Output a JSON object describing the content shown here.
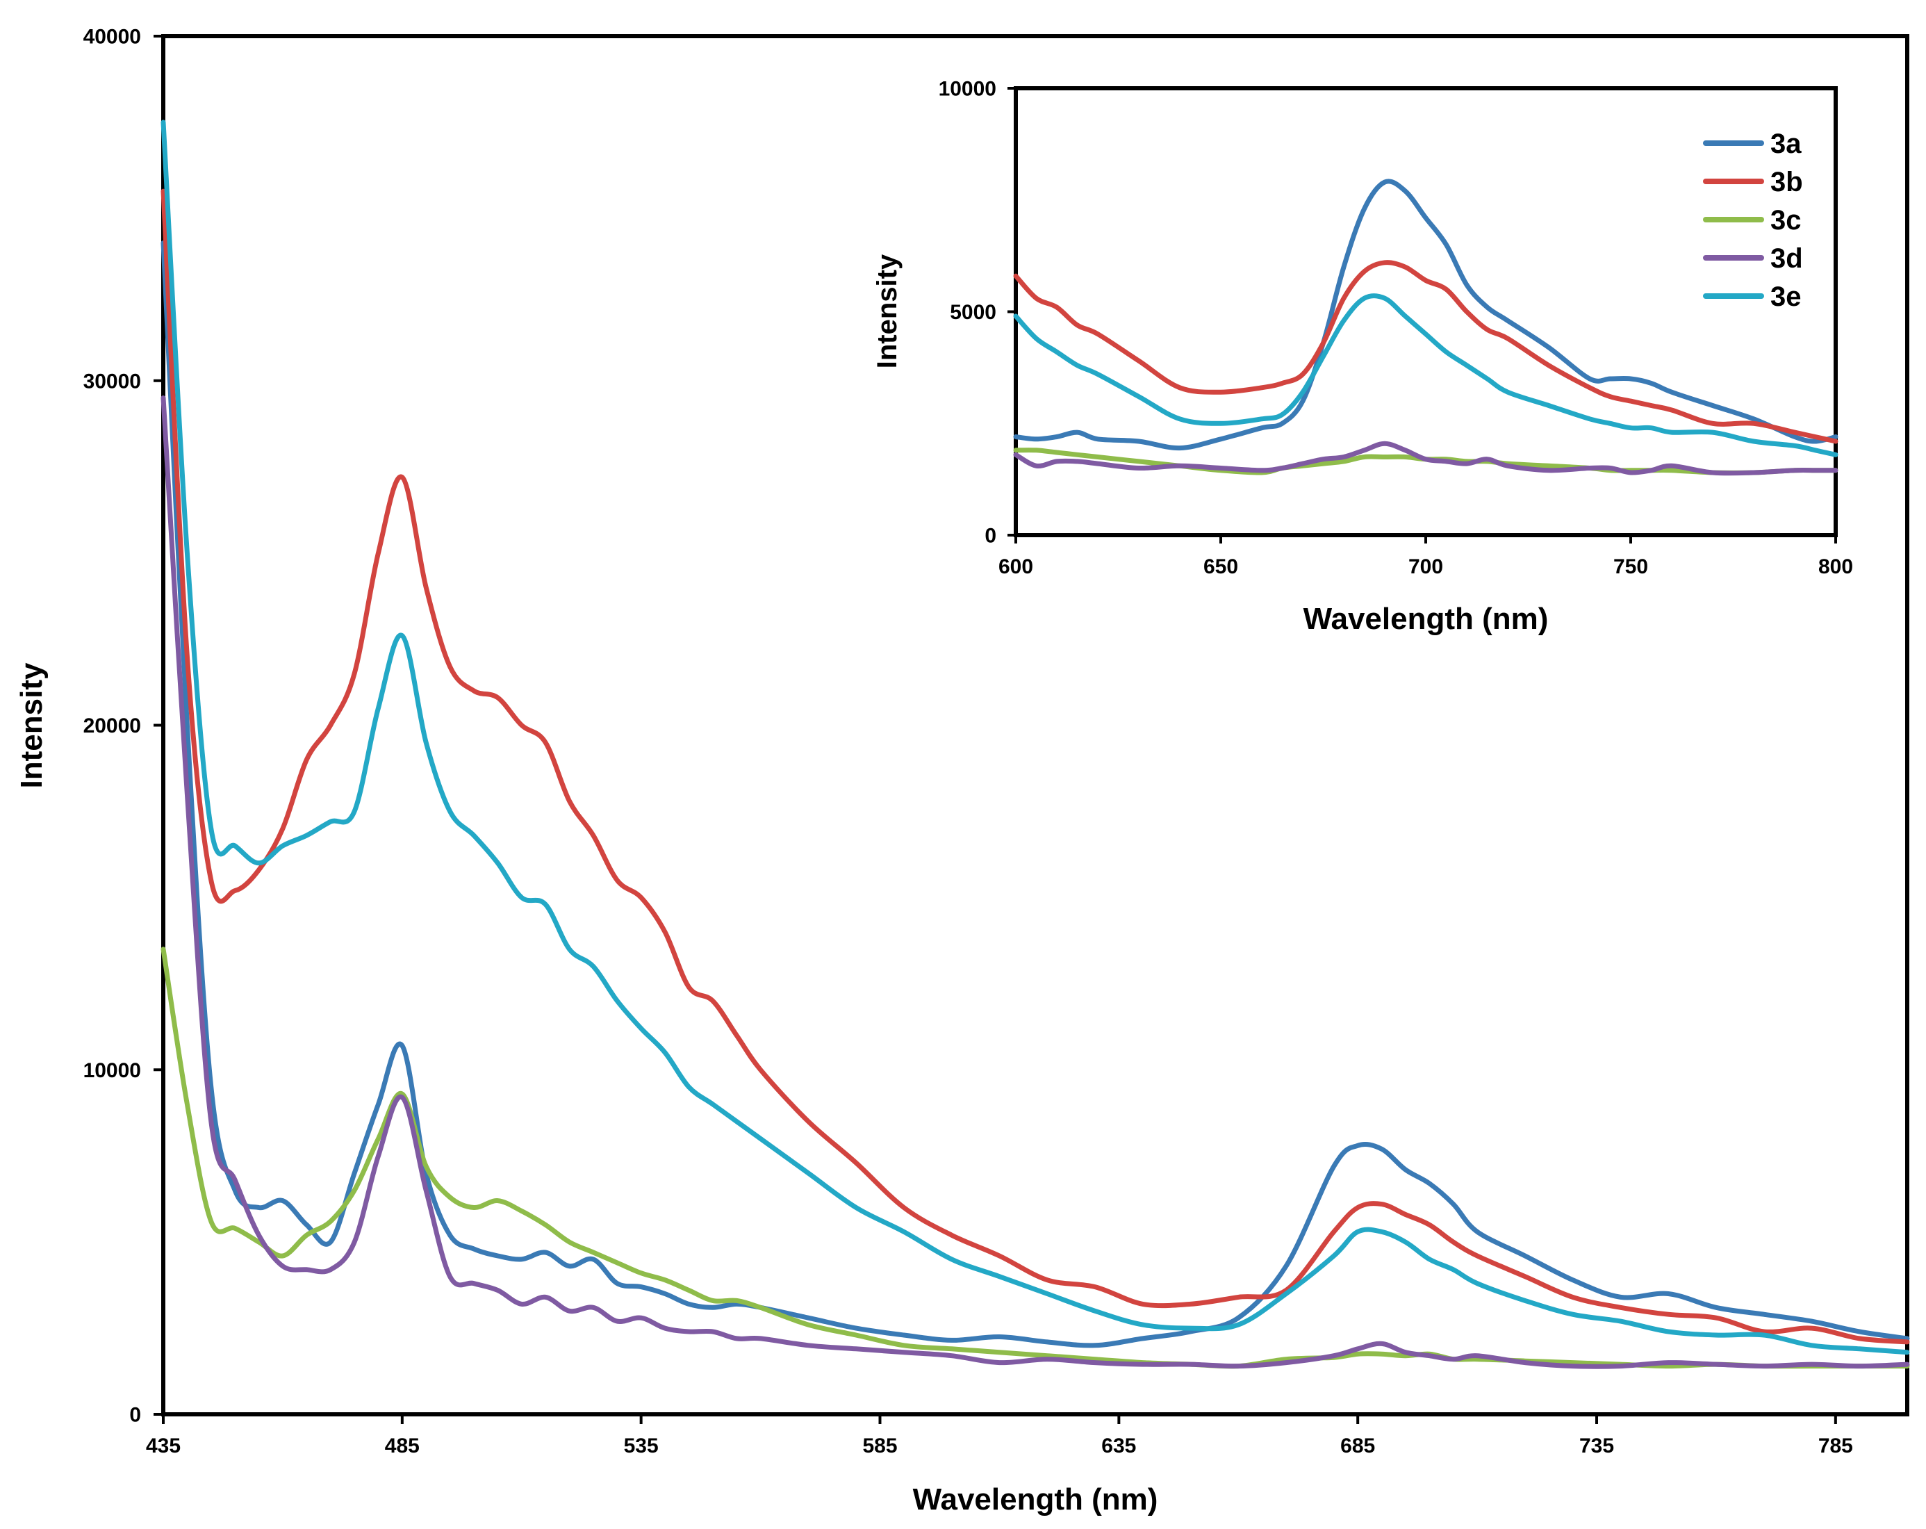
{
  "chart_data": [
    {
      "id": "main",
      "type": "line",
      "title": "",
      "xlabel": "Wavelength (nm)",
      "ylabel": "Intensity",
      "xlim": [
        435,
        800
      ],
      "ylim": [
        0,
        40000
      ],
      "xticks": [
        435,
        485,
        535,
        585,
        635,
        685,
        735,
        785
      ],
      "yticks": [
        0,
        10000,
        20000,
        30000,
        40000
      ],
      "grid": false,
      "series": [
        {
          "name": "3a",
          "color": "#3a7ab5",
          "x": [
            435,
            440,
            445,
            450,
            455,
            460,
            465,
            470,
            475,
            480,
            485,
            490,
            495,
            500,
            505,
            510,
            515,
            520,
            525,
            530,
            535,
            540,
            545,
            550,
            555,
            560,
            570,
            580,
            590,
            600,
            610,
            620,
            630,
            640,
            650,
            660,
            670,
            680,
            685,
            690,
            695,
            700,
            705,
            710,
            720,
            730,
            740,
            750,
            760,
            770,
            780,
            790,
            800
          ],
          "y": [
            34000,
            20000,
            9500,
            6500,
            6000,
            6200,
            5500,
            5000,
            7000,
            9000,
            10700,
            7000,
            5200,
            4800,
            4600,
            4500,
            4700,
            4300,
            4500,
            3800,
            3700,
            3500,
            3200,
            3100,
            3200,
            3100,
            2800,
            2500,
            2300,
            2150,
            2250,
            2100,
            2000,
            2200,
            2400,
            2800,
            4300,
            7200,
            7800,
            7700,
            7100,
            6700,
            6100,
            5300,
            4600,
            3900,
            3400,
            3500,
            3100,
            2900,
            2700,
            2400,
            2200
          ]
        },
        {
          "name": "3b",
          "color": "#d2443f",
          "x": [
            435,
            440,
            445,
            450,
            455,
            460,
            465,
            470,
            475,
            480,
            485,
            490,
            495,
            500,
            505,
            510,
            515,
            520,
            525,
            530,
            535,
            540,
            545,
            550,
            555,
            560,
            570,
            580,
            590,
            600,
            610,
            620,
            630,
            640,
            650,
            660,
            670,
            680,
            685,
            690,
            695,
            700,
            705,
            710,
            720,
            730,
            740,
            750,
            760,
            770,
            780,
            790,
            800
          ],
          "y": [
            35500,
            22000,
            15500,
            15200,
            15800,
            17000,
            19000,
            20000,
            21500,
            25000,
            27200,
            24000,
            21700,
            21000,
            20800,
            20000,
            19500,
            17800,
            16800,
            15500,
            15000,
            14000,
            12400,
            12000,
            11000,
            10000,
            8500,
            7300,
            6000,
            5200,
            4600,
            3900,
            3700,
            3200,
            3200,
            3400,
            3600,
            5300,
            6000,
            6100,
            5800,
            5500,
            5000,
            4600,
            4000,
            3400,
            3100,
            2900,
            2800,
            2400,
            2500,
            2200,
            2100
          ]
        },
        {
          "name": "3c",
          "color": "#8fbc4a",
          "x": [
            435,
            440,
            445,
            450,
            455,
            460,
            465,
            470,
            475,
            480,
            485,
            490,
            495,
            500,
            505,
            510,
            515,
            520,
            525,
            530,
            535,
            540,
            545,
            550,
            555,
            560,
            570,
            580,
            590,
            600,
            610,
            620,
            630,
            640,
            650,
            660,
            670,
            680,
            685,
            690,
            695,
            700,
            705,
            710,
            720,
            730,
            740,
            750,
            760,
            770,
            780,
            790,
            800
          ],
          "y": [
            13500,
            9000,
            5600,
            5400,
            5000,
            4600,
            5200,
            5600,
            6500,
            8000,
            9300,
            7200,
            6300,
            6000,
            6200,
            5900,
            5500,
            5000,
            4700,
            4400,
            4100,
            3900,
            3600,
            3300,
            3300,
            3100,
            2600,
            2300,
            2000,
            1900,
            1800,
            1700,
            1600,
            1500,
            1450,
            1400,
            1600,
            1650,
            1750,
            1750,
            1700,
            1750,
            1600,
            1600,
            1550,
            1500,
            1450,
            1400,
            1450,
            1400,
            1400,
            1400,
            1400
          ]
        },
        {
          "name": "3d",
          "color": "#7f5aa2",
          "x": [
            435,
            440,
            445,
            450,
            455,
            460,
            465,
            470,
            475,
            480,
            485,
            490,
            495,
            500,
            505,
            510,
            515,
            520,
            525,
            530,
            535,
            540,
            545,
            550,
            555,
            560,
            570,
            580,
            590,
            600,
            610,
            620,
            630,
            640,
            650,
            660,
            670,
            680,
            685,
            690,
            695,
            700,
            705,
            710,
            720,
            730,
            740,
            750,
            760,
            770,
            780,
            790,
            800
          ],
          "y": [
            29500,
            18000,
            8500,
            6800,
            5200,
            4300,
            4200,
            4200,
            5000,
            7500,
            9200,
            6500,
            4000,
            3800,
            3600,
            3200,
            3400,
            3000,
            3100,
            2700,
            2800,
            2500,
            2400,
            2400,
            2200,
            2200,
            2000,
            1900,
            1800,
            1700,
            1500,
            1600,
            1500,
            1450,
            1450,
            1400,
            1500,
            1700,
            1900,
            2050,
            1800,
            1700,
            1600,
            1700,
            1500,
            1400,
            1400,
            1500,
            1450,
            1400,
            1450,
            1400,
            1450
          ]
        },
        {
          "name": "3e",
          "color": "#23a8c6",
          "x": [
            435,
            440,
            445,
            450,
            455,
            460,
            465,
            470,
            475,
            480,
            485,
            490,
            495,
            500,
            505,
            510,
            515,
            520,
            525,
            530,
            535,
            540,
            545,
            550,
            555,
            560,
            570,
            580,
            590,
            600,
            610,
            620,
            630,
            640,
            650,
            660,
            670,
            680,
            685,
            690,
            695,
            700,
            705,
            710,
            720,
            730,
            740,
            750,
            760,
            770,
            780,
            790,
            800
          ],
          "y": [
            37500,
            25000,
            17000,
            16500,
            16000,
            16500,
            16800,
            17200,
            17500,
            20500,
            22600,
            19500,
            17500,
            16800,
            16000,
            15000,
            14800,
            13500,
            13000,
            12000,
            11200,
            10500,
            9500,
            9000,
            8500,
            8000,
            7000,
            6000,
            5300,
            4500,
            4000,
            3500,
            3000,
            2600,
            2500,
            2600,
            3500,
            4600,
            5300,
            5300,
            5000,
            4500,
            4200,
            3800,
            3300,
            2900,
            2700,
            2400,
            2300,
            2300,
            2000,
            1900,
            1800
          ]
        }
      ]
    },
    {
      "id": "inset",
      "type": "line",
      "title": "",
      "xlabel": "Wavelength (nm)",
      "ylabel": "Intensity",
      "xlim": [
        600,
        800
      ],
      "ylim": [
        0,
        10000
      ],
      "xticks": [
        600,
        650,
        700,
        750,
        800
      ],
      "yticks": [
        0,
        5000,
        10000
      ],
      "grid": false,
      "legend": {
        "position": "top-right",
        "entries": [
          "3a",
          "3b",
          "3c",
          "3d",
          "3e"
        ]
      },
      "series": [
        {
          "name": "3a",
          "color": "#3a7ab5",
          "x": [
            600,
            605,
            610,
            615,
            620,
            630,
            640,
            650,
            660,
            665,
            670,
            675,
            680,
            685,
            690,
            695,
            700,
            705,
            710,
            715,
            720,
            730,
            740,
            745,
            750,
            755,
            760,
            770,
            780,
            790,
            795,
            800
          ],
          "y": [
            2200,
            2150,
            2200,
            2300,
            2150,
            2100,
            1950,
            2150,
            2400,
            2500,
            3000,
            4300,
            6000,
            7300,
            7900,
            7700,
            7100,
            6500,
            5600,
            5100,
            4800,
            4200,
            3500,
            3500,
            3500,
            3400,
            3200,
            2900,
            2600,
            2200,
            2100,
            2200
          ]
        },
        {
          "name": "3b",
          "color": "#d2443f",
          "x": [
            600,
            605,
            610,
            615,
            620,
            630,
            640,
            650,
            660,
            665,
            670,
            675,
            680,
            685,
            690,
            695,
            700,
            705,
            710,
            715,
            720,
            730,
            740,
            745,
            750,
            755,
            760,
            770,
            780,
            790,
            795,
            800
          ],
          "y": [
            5800,
            5300,
            5100,
            4700,
            4500,
            3900,
            3300,
            3200,
            3300,
            3400,
            3600,
            4300,
            5300,
            5900,
            6100,
            6000,
            5700,
            5500,
            5000,
            4600,
            4400,
            3800,
            3300,
            3100,
            3000,
            2900,
            2800,
            2500,
            2500,
            2300,
            2200,
            2100
          ]
        },
        {
          "name": "3c",
          "color": "#8fbc4a",
          "x": [
            600,
            605,
            610,
            615,
            620,
            630,
            640,
            650,
            660,
            665,
            670,
            675,
            680,
            685,
            690,
            695,
            700,
            705,
            710,
            715,
            720,
            730,
            740,
            745,
            750,
            755,
            760,
            770,
            780,
            790,
            795,
            800
          ],
          "y": [
            1900,
            1900,
            1850,
            1800,
            1750,
            1650,
            1550,
            1450,
            1400,
            1500,
            1550,
            1600,
            1650,
            1750,
            1750,
            1750,
            1700,
            1700,
            1650,
            1650,
            1600,
            1550,
            1500,
            1450,
            1450,
            1450,
            1450,
            1400,
            1400,
            1450,
            1450,
            1450
          ]
        },
        {
          "name": "3d",
          "color": "#7f5aa2",
          "x": [
            600,
            605,
            610,
            615,
            620,
            630,
            640,
            650,
            660,
            665,
            670,
            675,
            680,
            685,
            690,
            695,
            700,
            705,
            710,
            715,
            720,
            730,
            740,
            745,
            750,
            755,
            760,
            770,
            780,
            790,
            795,
            800
          ],
          "y": [
            1800,
            1550,
            1650,
            1650,
            1600,
            1500,
            1550,
            1500,
            1450,
            1500,
            1600,
            1700,
            1750,
            1900,
            2050,
            1900,
            1700,
            1650,
            1600,
            1700,
            1550,
            1450,
            1500,
            1500,
            1400,
            1450,
            1550,
            1400,
            1400,
            1450,
            1450,
            1450
          ]
        },
        {
          "name": "3e",
          "color": "#23a8c6",
          "x": [
            600,
            605,
            610,
            615,
            620,
            630,
            640,
            650,
            660,
            665,
            670,
            675,
            680,
            685,
            690,
            695,
            700,
            705,
            710,
            715,
            720,
            730,
            740,
            745,
            750,
            755,
            760,
            770,
            780,
            790,
            795,
            800
          ],
          "y": [
            4900,
            4400,
            4100,
            3800,
            3600,
            3100,
            2600,
            2500,
            2600,
            2700,
            3200,
            4000,
            4800,
            5300,
            5300,
            4900,
            4500,
            4100,
            3800,
            3500,
            3200,
            2900,
            2600,
            2500,
            2400,
            2400,
            2300,
            2300,
            2100,
            2000,
            1900,
            1800
          ]
        }
      ]
    }
  ]
}
